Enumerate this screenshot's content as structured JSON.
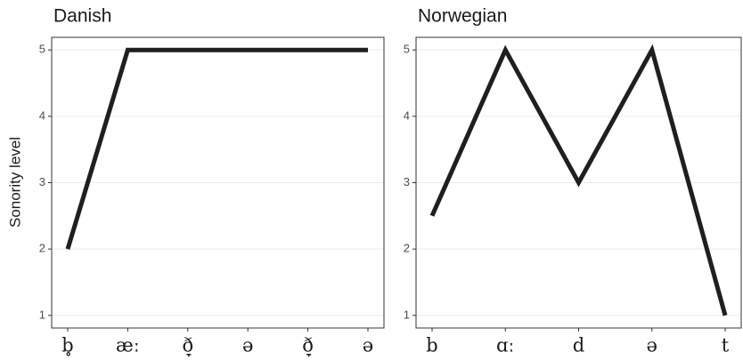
{
  "chart_data": [
    {
      "type": "line",
      "title": "Danish",
      "y_label": "Sonority level",
      "categories": [
        "b̥",
        "æː",
        "ð̞",
        "ə",
        "ð̞",
        "ə"
      ],
      "values": [
        2,
        5,
        5,
        5,
        5,
        5
      ],
      "color": "#1f1f1f",
      "ylim": [
        0.81,
        5.19
      ],
      "yticks": [
        1,
        2,
        3,
        4,
        5
      ],
      "grid": true
    },
    {
      "type": "line",
      "title": "Norwegian",
      "categories": [
        "b",
        "ɑː",
        "d",
        "ə",
        "t"
      ],
      "values": [
        2.5,
        5,
        3,
        5,
        1
      ],
      "color": "#1f1f1f",
      "ylim": [
        0.81,
        5.19
      ],
      "yticks": [
        1,
        2,
        3,
        4,
        5
      ],
      "grid": true
    }
  ]
}
